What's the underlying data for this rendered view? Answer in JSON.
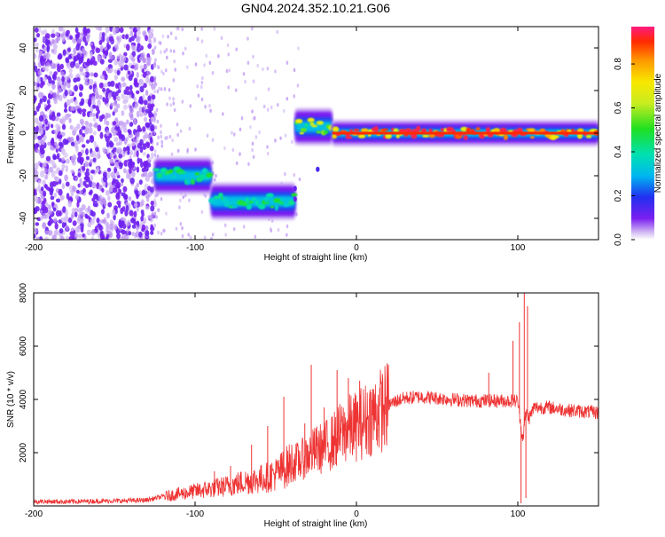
{
  "title": "GN04.2024.352.10.21.G06",
  "chart_data": [
    {
      "type": "heatmap",
      "xlabel": "Height of straight line (km)",
      "ylabel": "Frequency (Hz)",
      "xlim": [
        -200,
        150
      ],
      "ylim": [
        -50,
        50
      ],
      "x_ticks": [
        -200,
        -100,
        0,
        100
      ],
      "y_ticks": [
        -40,
        -20,
        0,
        20,
        40
      ],
      "grid": false,
      "colorbar": {
        "label": "Normalized spectral amplitude",
        "range": [
          0,
          0.97
        ],
        "ticks": [
          0.0,
          0.2,
          0.4,
          0.6,
          0.8
        ]
      },
      "segments": [
        {
          "x_range": [
            -200,
            -125
          ],
          "frequency": "broadband noise",
          "amplitude": 0.1
        },
        {
          "x_range": [
            -125,
            -90
          ],
          "frequency": -20,
          "amplitude": 0.45
        },
        {
          "x_range": [
            -90,
            -38
          ],
          "frequency": -32,
          "amplitude": 0.45
        },
        {
          "x_range": [
            -38,
            -15
          ],
          "frequency": 3,
          "amplitude": 0.6
        },
        {
          "x_range": [
            -15,
            150
          ],
          "frequency": 0,
          "amplitude": 0.95
        }
      ]
    },
    {
      "type": "line",
      "xlabel": "Height of straight line (km)",
      "ylabel": "SNR (10 * v/v)",
      "xlim": [
        -200,
        150
      ],
      "ylim": [
        0,
        8000
      ],
      "x_ticks": [
        -200,
        -100,
        0,
        100
      ],
      "y_ticks": [
        2000,
        4000,
        6000,
        8000
      ],
      "grid": false,
      "color": "#ee3333",
      "x": [
        -200,
        -180,
        -160,
        -140,
        -130,
        -120,
        -110,
        -100,
        -90,
        -80,
        -70,
        -60,
        -50,
        -45,
        -40,
        -35,
        -30,
        -25,
        -20,
        -15,
        -10,
        -5,
        0,
        5,
        10,
        15,
        20,
        25,
        30,
        40,
        50,
        60,
        70,
        80,
        90,
        95,
        100,
        103,
        105,
        107,
        110,
        120,
        130,
        140,
        150
      ],
      "y": [
        170,
        160,
        180,
        200,
        220,
        350,
        450,
        550,
        650,
        750,
        900,
        1000,
        1200,
        1400,
        1600,
        1700,
        1900,
        2100,
        2200,
        2400,
        2700,
        2900,
        3000,
        3200,
        3400,
        3600,
        3800,
        3950,
        4050,
        4100,
        4050,
        4000,
        3950,
        3950,
        3950,
        3950,
        3950,
        2500,
        3500,
        3300,
        3700,
        3700,
        3600,
        3550,
        3500
      ],
      "spikes": [
        {
          "x": -88,
          "y": 1300
        },
        {
          "x": -78,
          "y": 1500
        },
        {
          "x": -65,
          "y": 2300
        },
        {
          "x": -55,
          "y": 3000
        },
        {
          "x": -45,
          "y": 4100
        },
        {
          "x": -32,
          "y": 3100
        },
        {
          "x": -28,
          "y": 5300
        },
        {
          "x": -20,
          "y": 3700
        },
        {
          "x": -12,
          "y": 5100
        },
        {
          "x": -5,
          "y": 4800
        },
        {
          "x": 2,
          "y": 4700
        },
        {
          "x": 10,
          "y": 4400
        },
        {
          "x": 82,
          "y": 5000
        },
        {
          "x": 97,
          "y": 6200
        },
        {
          "x": 101,
          "y": 6900
        },
        {
          "x": 104,
          "y": 8000
        },
        {
          "x": 106,
          "y": 7500
        }
      ],
      "dips": [
        {
          "x": 102,
          "y": 100
        },
        {
          "x": 105,
          "y": 300
        }
      ]
    }
  ]
}
